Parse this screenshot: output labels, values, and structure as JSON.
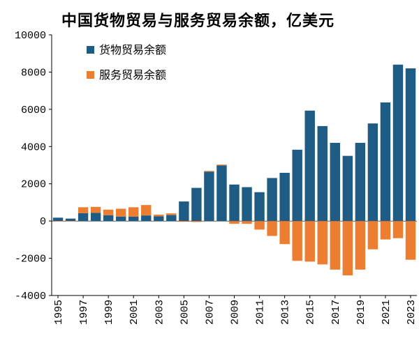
{
  "chart_data": {
    "type": "bar",
    "title": "中国货物贸易与服务贸易余额，亿美元",
    "categories": [
      1995,
      1996,
      1997,
      1998,
      1999,
      2000,
      2001,
      2002,
      2003,
      2004,
      2005,
      2006,
      2007,
      2008,
      2009,
      2010,
      2011,
      2012,
      2013,
      2014,
      2015,
      2016,
      2017,
      2018,
      2019,
      2020,
      2021,
      2022,
      2023
    ],
    "x_tick_labels": [
      "1995",
      "1997",
      "1999",
      "2001",
      "2003",
      "2005",
      "2007",
      "2009",
      "2011",
      "2013",
      "2015",
      "2017",
      "2019",
      "2021",
      "2023"
    ],
    "series": [
      {
        "name": "货物贸易余额",
        "color": "#1f5c85",
        "values": [
          180,
          130,
          420,
          440,
          310,
          240,
          230,
          300,
          250,
          320,
          1050,
          1780,
          2650,
          2990,
          1960,
          1820,
          1550,
          2310,
          2590,
          3830,
          5930,
          5100,
          4200,
          3500,
          4200,
          5240,
          6370,
          8400,
          8200
        ]
      },
      {
        "name": "服务贸易余额",
        "color": "#ed7d31",
        "values": [
          -20,
          -20,
          320,
          320,
          300,
          420,
          510,
          560,
          90,
          90,
          -40,
          -50,
          40,
          40,
          -150,
          -150,
          -460,
          -800,
          -1240,
          -2140,
          -2180,
          -2330,
          -2610,
          -2920,
          -2610,
          -1520,
          -990,
          -920,
          -2080
        ]
      }
    ],
    "y_ticks": [
      -4000,
      -2000,
      0,
      2000,
      4000,
      6000,
      8000,
      10000
    ],
    "ylim": [
      -4000,
      10000
    ],
    "xlabel": "",
    "ylabel": "",
    "legend_position": "top-left",
    "grid": false
  }
}
